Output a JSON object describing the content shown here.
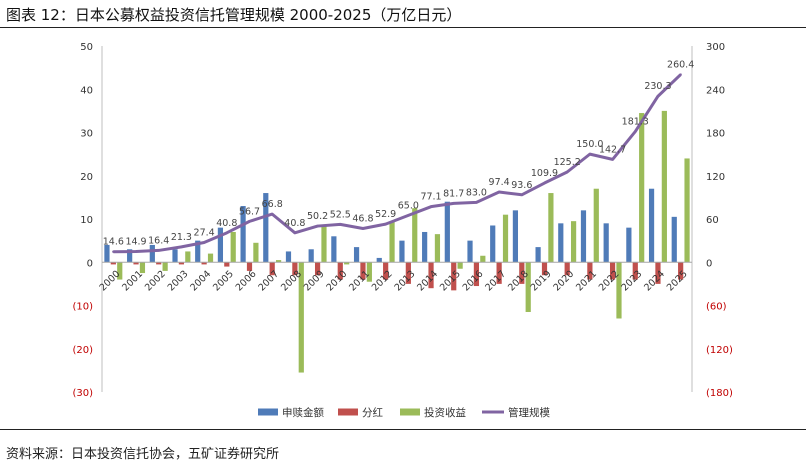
{
  "figure": {
    "title": "图表 12：日本公募权益投资信托管理规模 2000-2025（万亿日元）",
    "source": "资料来源：日本投资信托协会，五矿证券研究所"
  },
  "colors": {
    "subscription": "#4F7BB8",
    "dividend": "#C0504D",
    "return": "#9BBB59",
    "aum": "#8064A2",
    "negative_label": "#C00000",
    "axis_text": "#333333",
    "value_label": "#444444"
  },
  "chart_data": {
    "type": "bar",
    "categories": [
      "2000",
      "2001",
      "2002",
      "2003",
      "2004",
      "2005",
      "2006",
      "2007",
      "2008",
      "2009",
      "2010",
      "2011",
      "2012",
      "2013",
      "2014",
      "2015",
      "2016",
      "2017",
      "2018",
      "2019",
      "2020",
      "2021",
      "2022",
      "2023",
      "2024",
      "2025"
    ],
    "series": [
      {
        "name": "申赎金额",
        "type": "bar",
        "axis": "left",
        "values": [
          4,
          3,
          4,
          3,
          5,
          8,
          13,
          16,
          2.5,
          3,
          6,
          3.5,
          1,
          5,
          7,
          14,
          5,
          8.5,
          12,
          3.5,
          9,
          12,
          9,
          8,
          17,
          10.5
        ]
      },
      {
        "name": "分红",
        "type": "bar",
        "axis": "left",
        "values": [
          -0.5,
          -0.5,
          -0.5,
          -0.5,
          -0.5,
          -1,
          -2,
          -3,
          -3,
          -3,
          -4,
          -4,
          -4,
          -5,
          -6,
          -6.5,
          -5.5,
          -5,
          -5,
          -3,
          -3,
          -4,
          -4,
          -4,
          -5,
          -4
        ]
      },
      {
        "name": "投资收益",
        "type": "bar",
        "axis": "left",
        "values": [
          -4,
          -2.5,
          -2,
          2.5,
          2,
          7,
          4.5,
          0.5,
          -25.5,
          8.5,
          -0.5,
          -4.5,
          9.5,
          12.5,
          6.5,
          -1.5,
          1.5,
          11,
          -11.5,
          16,
          9.5,
          17,
          -13,
          34.5,
          35,
          24
        ]
      },
      {
        "name": "管理规模",
        "type": "line",
        "axis": "right",
        "values": [
          14.6,
          14.9,
          16.4,
          21.3,
          27.4,
          40.8,
          56.7,
          66.8,
          40.8,
          50.2,
          52.5,
          46.8,
          52.9,
          65.0,
          77.1,
          81.7,
          83.0,
          97.4,
          93.6,
          109.9,
          125.2,
          150.0,
          142.7,
          181.3,
          230.3,
          260.4
        ],
        "labels": [
          "14.6",
          "14.9",
          "16.4",
          "21.3",
          "27.4",
          "40.8",
          "56.7",
          "66.8",
          "40.8",
          "50.2",
          "52.5",
          "46.8",
          "52.9",
          "65.0",
          "77.1",
          "81.7",
          "83.0",
          "97.4",
          "93.6",
          "109.9",
          "125.2",
          "150.0",
          "142.7",
          "181.3",
          "230.3",
          "260.4"
        ]
      }
    ],
    "y_left": {
      "ylim": [
        -30,
        50
      ],
      "ticks": [
        50,
        40,
        30,
        20,
        10,
        0,
        -10,
        -20,
        -30
      ],
      "tick_labels": [
        "50",
        "40",
        "30",
        "20",
        "10",
        "0",
        "(10)",
        "(20)",
        "(30)"
      ]
    },
    "y_right": {
      "ylim": [
        -180,
        300
      ],
      "ticks": [
        300,
        240,
        180,
        120,
        60,
        0,
        -60,
        -120,
        -180
      ],
      "tick_labels": [
        "300",
        "240",
        "180",
        "120",
        "60",
        "0",
        "(60)",
        "(120)",
        "(180)"
      ]
    },
    "grid": false,
    "legend": {
      "position": "bottom",
      "entries": [
        "申赎金额",
        "分红",
        "投资收益",
        "管理规模"
      ]
    }
  }
}
